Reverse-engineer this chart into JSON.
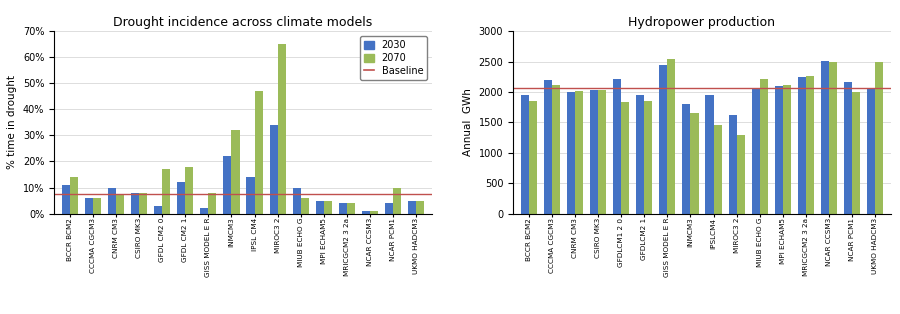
{
  "drought_models": [
    "BCCR BCM2",
    "CCCMA CGCM3",
    "CNRM CM3",
    "CSIRO MK3",
    "GFDL CM2 0",
    "GFDL CM2 1",
    "GISS MODEL E R",
    "INMCM3",
    "IPSL CM4",
    "MIROC3 2",
    "MIUB ECHO G",
    "MPI ECHAM5",
    "MRICGCM2 3 2a",
    "NCAR CCSM3",
    "NCAR PCM1",
    "UKMO HADCM3"
  ],
  "drought_2030": [
    0.11,
    0.06,
    0.1,
    0.08,
    0.03,
    0.12,
    0.02,
    0.22,
    0.14,
    0.34,
    0.1,
    0.05,
    0.04,
    0.01,
    0.04,
    0.05
  ],
  "drought_2070": [
    0.14,
    0.06,
    0.07,
    0.08,
    0.17,
    0.18,
    0.08,
    0.32,
    0.47,
    0.65,
    0.06,
    0.05,
    0.04,
    0.01,
    0.1,
    0.05
  ],
  "drought_baseline": 0.075,
  "drought_title": "Drought incidence across climate models",
  "drought_ylabel": "% time in drought",
  "drought_ylim": [
    0,
    0.7
  ],
  "drought_yticks": [
    0.0,
    0.1,
    0.2,
    0.3,
    0.4,
    0.5,
    0.6,
    0.7
  ],
  "hydro_models": [
    "BCCR BCM2",
    "CCCMA CGCM3",
    "CNRM CM3",
    "CSIRO MK3",
    "GFDLCM1 2 0",
    "GFDLCM2 1",
    "GISS MODEL E R",
    "INMCM3",
    "IPSLCM4",
    "MIROC3 2",
    "MIUB ECHO G",
    "MPI ECHAM5",
    "MRICGCM2 3 2a",
    "NCAR CCSM3",
    "NCAR PCM1",
    "UKMO HADCM3"
  ],
  "hydro_2030": [
    1950,
    2200,
    2000,
    2040,
    2220,
    1960,
    2450,
    1800,
    1950,
    1630,
    2060,
    2100,
    2250,
    2520,
    2160,
    2060
  ],
  "hydro_2070": [
    1860,
    2110,
    2010,
    2030,
    1830,
    1860,
    2540,
    1660,
    1460,
    1290,
    2220,
    2120,
    2260,
    2500,
    2000,
    2500
  ],
  "hydro_baseline": 2060,
  "hydro_title": "Hydropower production",
  "hydro_ylabel": "Annual  GWh",
  "hydro_ylim": [
    0,
    3000
  ],
  "hydro_yticks": [
    0,
    500,
    1000,
    1500,
    2000,
    2500,
    3000
  ],
  "color_2030": "#4472C4",
  "color_2070": "#9BBB59",
  "color_baseline": "#C0504D",
  "legend_labels": [
    "2030",
    "2070",
    "Baseline"
  ],
  "bar_width": 0.35
}
